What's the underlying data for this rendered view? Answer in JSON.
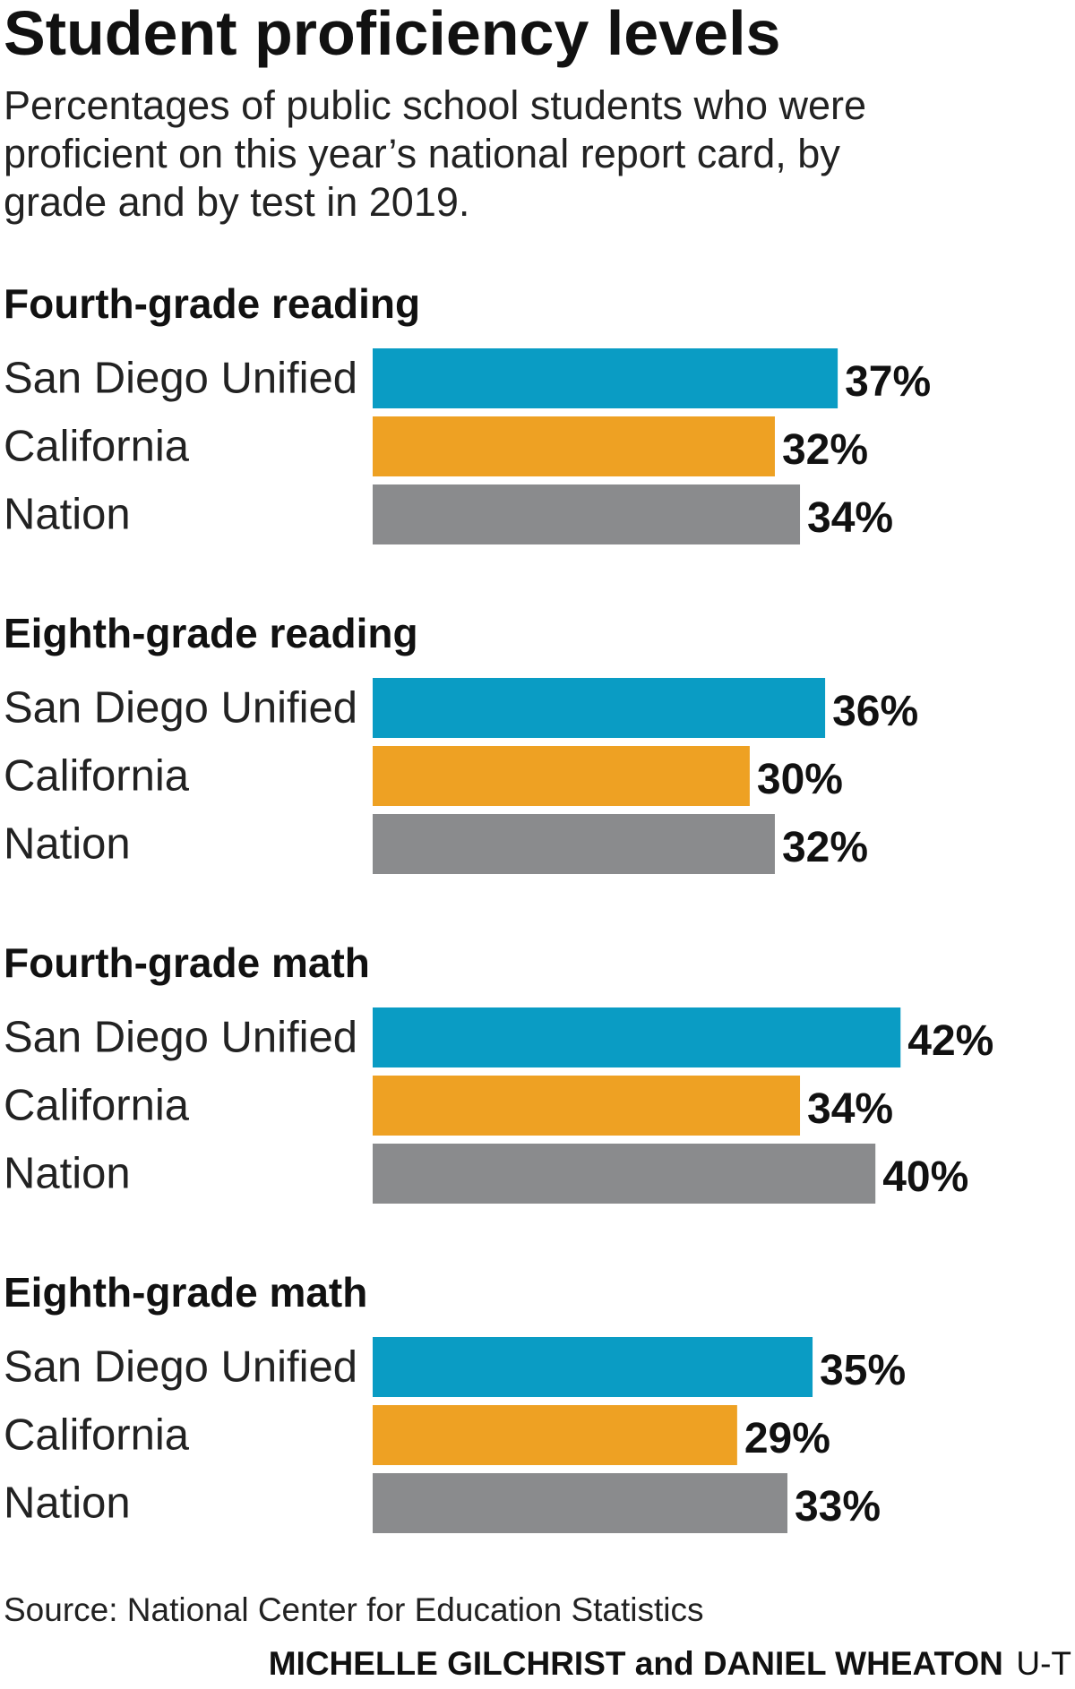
{
  "title": "Student proficiency levels",
  "subtitle_lines": [
    "Percentages of public school students who were",
    "proficient on this year’s national report card, by",
    "grade and by test in 2019."
  ],
  "source": "Source: National Center for Education Statistics",
  "credit": {
    "authors": "MICHELLE GILCHRIST and DANIEL WHEATON",
    "org": "U-T"
  },
  "colors": {
    "San Diego Unified": "#0a9cc4",
    "California": "#eea123",
    "Nation": "#8a8b8d"
  },
  "chart_data": {
    "type": "bar",
    "orientation": "horizontal",
    "value_unit": "%",
    "categories": [
      "San Diego Unified",
      "California",
      "Nation"
    ],
    "groups": [
      {
        "title": "Fourth-grade reading",
        "values": [
          37,
          32,
          34
        ]
      },
      {
        "title": "Eighth-grade reading",
        "values": [
          36,
          30,
          32
        ]
      },
      {
        "title": "Fourth-grade math",
        "values": [
          42,
          34,
          40
        ]
      },
      {
        "title": "Eighth-grade math",
        "values": [
          35,
          29,
          33
        ]
      }
    ]
  }
}
